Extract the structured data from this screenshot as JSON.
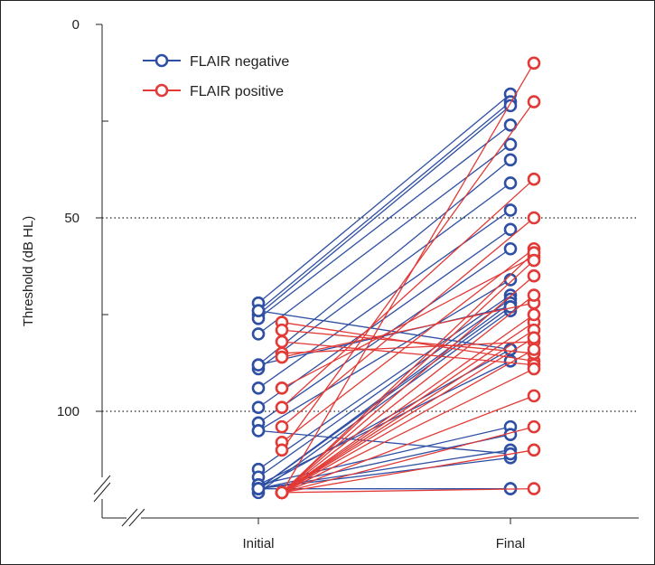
{
  "chart_data": {
    "type": "line",
    "title": "",
    "ylabel": "Threshold (dB HL)",
    "xlabel": "",
    "categories": [
      "Initial",
      "Final"
    ],
    "ylim": [
      0,
      121
    ],
    "y_inverted": true,
    "y_ticks": [
      0,
      50,
      100
    ],
    "y_tick_labels": [
      "0",
      "50",
      "100"
    ],
    "reference_lines": [
      50,
      100
    ],
    "y_axis_break": true,
    "legend": {
      "placement": "top-left"
    },
    "colors": {
      "FLAIR negative": "#2e4fa3",
      "FLAIR positive": "#e23a36"
    },
    "series": [
      {
        "name": "FLAIR negative",
        "color": "#2e4fa3",
        "pairs": [
          [
            72,
            18
          ],
          [
            74,
            20
          ],
          [
            75,
            21
          ],
          [
            76,
            26
          ],
          [
            80,
            31
          ],
          [
            88,
            35
          ],
          [
            89,
            41
          ],
          [
            94,
            48
          ],
          [
            99,
            53
          ],
          [
            103,
            58
          ],
          [
            105,
            66
          ],
          [
            115,
            70
          ],
          [
            117,
            71
          ],
          [
            120,
            72
          ],
          [
            120,
            73
          ],
          [
            121,
            74
          ],
          [
            120,
            84
          ],
          [
            119,
            87
          ],
          [
            119,
            104
          ],
          [
            120,
            106
          ],
          [
            120,
            110
          ],
          [
            120,
            112
          ],
          [
            120,
            120
          ],
          [
            120,
            120
          ],
          [
            105,
            111
          ],
          [
            74,
            84
          ],
          [
            88,
            73
          ]
        ]
      },
      {
        "name": "FLAIR positive",
        "color": "#e23a36",
        "pairs": [
          [
            77,
            87
          ],
          [
            79,
            85
          ],
          [
            82,
            88
          ],
          [
            85,
            82
          ],
          [
            86,
            72
          ],
          [
            94,
            60
          ],
          [
            99,
            40
          ],
          [
            104,
            50
          ],
          [
            108,
            58
          ],
          [
            110,
            20
          ],
          [
            121,
            10
          ],
          [
            121,
            59
          ],
          [
            121,
            61
          ],
          [
            121,
            65
          ],
          [
            121,
            70
          ],
          [
            121,
            77
          ],
          [
            121,
            79
          ],
          [
            121,
            81
          ],
          [
            121,
            84
          ],
          [
            121,
            89
          ],
          [
            121,
            96
          ],
          [
            121,
            104
          ],
          [
            121,
            110
          ],
          [
            121,
            120
          ],
          [
            121,
            75
          ]
        ]
      }
    ]
  }
}
